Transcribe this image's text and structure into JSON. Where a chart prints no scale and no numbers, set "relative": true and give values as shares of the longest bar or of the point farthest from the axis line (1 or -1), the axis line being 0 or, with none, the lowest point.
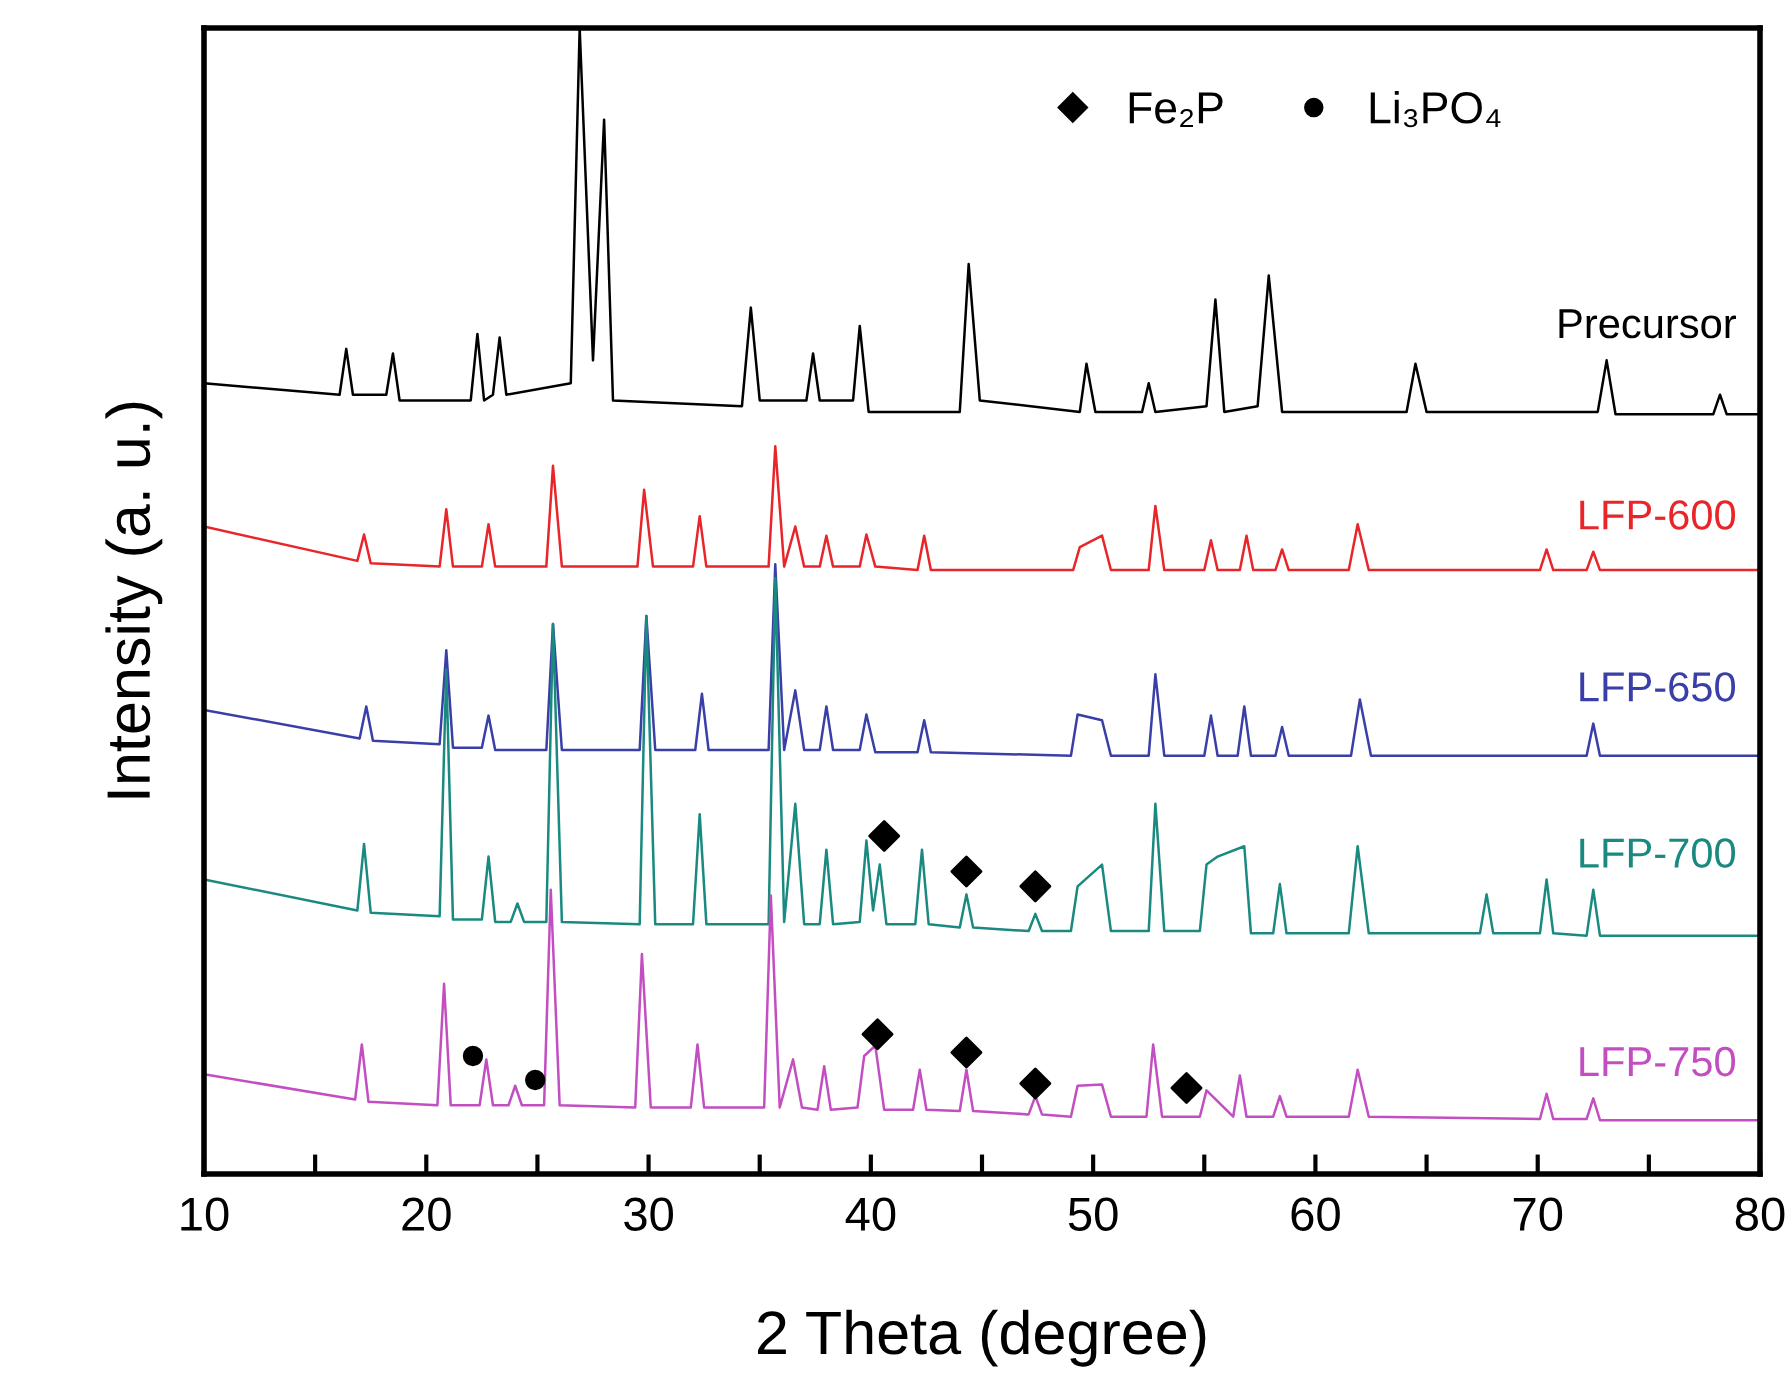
{
  "chart_data": {
    "type": "line",
    "relative": true,
    "xlabel": "2 Theta (degree)",
    "ylabel": "Intensity (a. u.)",
    "xlim": [
      10,
      80
    ],
    "xticks": [
      10,
      {
        "value": 15,
        "label": null
      },
      20,
      {
        "value": 25,
        "label": null
      },
      30,
      {
        "value": 35,
        "label": null
      },
      40,
      {
        "value": 45,
        "label": null
      },
      50,
      {
        "value": 55,
        "label": null
      },
      60,
      {
        "value": 65,
        "label": null
      },
      70,
      {
        "value": 75,
        "label": null
      },
      80
    ],
    "grid": false,
    "legend": "top right",
    "marker": "none",
    "line_style": "solid",
    "series": [
      {
        "name": "Precursor",
        "color": "#000000",
        "x": [
          10,
          16.1,
          16.4,
          16.7,
          18.2,
          18.5,
          18.8,
          22.0,
          22.3,
          22.6,
          23.0,
          23.3,
          23.6,
          26.5,
          26.9,
          27.5,
          28.0,
          28.4,
          34.2,
          34.6,
          35.0,
          37.1,
          37.4,
          37.7,
          39.2,
          39.5,
          39.9,
          44.0,
          44.4,
          44.9,
          49.4,
          49.7,
          50.1,
          52.2,
          52.5,
          52.8,
          55.1,
          55.5,
          55.9,
          57.4,
          57.9,
          58.5,
          64.1,
          64.5,
          65.0,
          72.7,
          73.1,
          73.5,
          77.9,
          78.2,
          78.5,
          80
        ],
        "values": [
          0.69,
          0.68,
          0.72,
          0.68,
          0.68,
          0.716,
          0.675,
          0.675,
          0.733,
          0.675,
          0.68,
          0.73,
          0.68,
          0.69,
          1.0,
          0.71,
          0.92,
          0.675,
          0.67,
          0.756,
          0.675,
          0.675,
          0.716,
          0.675,
          0.675,
          0.74,
          0.665,
          0.665,
          0.794,
          0.675,
          0.665,
          0.707,
          0.665,
          0.665,
          0.69,
          0.665,
          0.67,
          0.763,
          0.665,
          0.67,
          0.784,
          0.665,
          0.665,
          0.707,
          0.665,
          0.665,
          0.71,
          0.663,
          0.663,
          0.68,
          0.663,
          0.663
        ]
      },
      {
        "name": "LFP-600",
        "color": "#e8262a",
        "x": [
          10,
          16.9,
          17.2,
          17.5,
          20.6,
          20.9,
          21.2,
          22.5,
          22.8,
          23.1,
          25.4,
          25.7,
          26.1,
          29.5,
          29.8,
          30.2,
          32.0,
          32.3,
          32.6,
          35.4,
          35.7,
          36.1,
          36.6,
          37.0,
          37.7,
          38.0,
          38.3,
          39.5,
          39.8,
          40.2,
          42.1,
          42.4,
          42.7,
          49.1,
          49.4,
          50.4,
          50.8,
          52.5,
          52.8,
          53.2,
          55.0,
          55.3,
          55.6,
          56.6,
          56.9,
          57.2,
          58.2,
          58.5,
          58.8,
          61.5,
          61.9,
          62.4,
          70.1,
          70.4,
          70.7,
          72.2,
          72.5,
          72.8,
          80
        ],
        "values": [
          0.565,
          0.535,
          0.558,
          0.533,
          0.53,
          0.58,
          0.53,
          0.53,
          0.567,
          0.53,
          0.53,
          0.618,
          0.53,
          0.53,
          0.597,
          0.53,
          0.53,
          0.574,
          0.53,
          0.53,
          0.635,
          0.53,
          0.565,
          0.53,
          0.53,
          0.557,
          0.53,
          0.53,
          0.558,
          0.53,
          0.527,
          0.557,
          0.527,
          0.527,
          0.547,
          0.557,
          0.527,
          0.527,
          0.583,
          0.527,
          0.527,
          0.553,
          0.527,
          0.527,
          0.557,
          0.527,
          0.527,
          0.545,
          0.527,
          0.527,
          0.567,
          0.527,
          0.527,
          0.545,
          0.527,
          0.527,
          0.543,
          0.527,
          0.527
        ]
      },
      {
        "name": "LFP-650",
        "color": "#3a3fa8",
        "x": [
          10,
          17.0,
          17.3,
          17.6,
          20.6,
          20.9,
          21.2,
          22.5,
          22.8,
          23.1,
          25.4,
          25.7,
          26.1,
          29.6,
          29.9,
          30.3,
          32.1,
          32.4,
          32.7,
          35.4,
          35.7,
          36.1,
          36.6,
          37.0,
          37.7,
          38.0,
          38.3,
          39.5,
          39.8,
          40.2,
          42.1,
          42.4,
          42.7,
          49.0,
          49.3,
          50.4,
          50.8,
          52.5,
          52.8,
          53.2,
          55.0,
          55.3,
          55.6,
          56.5,
          56.8,
          57.1,
          58.2,
          58.5,
          58.8,
          61.6,
          62.0,
          62.5,
          72.2,
          72.5,
          72.8,
          80
        ],
        "values": [
          0.405,
          0.38,
          0.408,
          0.378,
          0.375,
          0.457,
          0.372,
          0.372,
          0.4,
          0.37,
          0.37,
          0.48,
          0.37,
          0.37,
          0.487,
          0.37,
          0.37,
          0.419,
          0.37,
          0.37,
          0.532,
          0.37,
          0.422,
          0.37,
          0.37,
          0.408,
          0.37,
          0.37,
          0.401,
          0.368,
          0.368,
          0.396,
          0.368,
          0.365,
          0.401,
          0.396,
          0.365,
          0.365,
          0.436,
          0.365,
          0.365,
          0.4,
          0.365,
          0.365,
          0.408,
          0.365,
          0.365,
          0.39,
          0.365,
          0.365,
          0.414,
          0.365,
          0.365,
          0.393,
          0.365,
          0.365
        ]
      },
      {
        "name": "LFP-700",
        "color": "#1a8a80",
        "x": [
          10,
          16.9,
          17.2,
          17.5,
          20.6,
          20.9,
          21.2,
          22.5,
          22.8,
          23.1,
          23.8,
          24.1,
          24.4,
          25.4,
          25.7,
          26.1,
          29.6,
          29.9,
          30.3,
          32.0,
          32.3,
          32.6,
          35.4,
          35.7,
          36.1,
          36.6,
          37.0,
          37.7,
          38.0,
          38.3,
          39.5,
          39.8,
          40.1,
          40.4,
          40.7,
          42.0,
          42.3,
          42.6,
          44.0,
          44.3,
          44.6,
          47.1,
          47.4,
          47.7,
          49.0,
          49.3,
          50.4,
          50.8,
          52.5,
          52.8,
          53.2,
          54.8,
          55.1,
          55.6,
          56.8,
          57.1,
          58.1,
          58.4,
          58.7,
          61.5,
          61.9,
          62.4,
          67.4,
          67.7,
          68.0,
          70.1,
          70.4,
          70.7,
          72.2,
          72.5,
          72.8,
          80
        ],
        "values": [
          0.257,
          0.23,
          0.288,
          0.228,
          0.225,
          0.44,
          0.222,
          0.222,
          0.277,
          0.22,
          0.22,
          0.236,
          0.22,
          0.22,
          0.48,
          0.22,
          0.218,
          0.487,
          0.218,
          0.218,
          0.314,
          0.218,
          0.218,
          0.52,
          0.22,
          0.323,
          0.218,
          0.218,
          0.283,
          0.218,
          0.22,
          0.291,
          0.23,
          0.27,
          0.218,
          0.218,
          0.283,
          0.218,
          0.215,
          0.244,
          0.215,
          0.212,
          0.227,
          0.212,
          0.212,
          0.251,
          0.27,
          0.212,
          0.212,
          0.323,
          0.212,
          0.212,
          0.27,
          0.277,
          0.286,
          0.21,
          0.21,
          0.253,
          0.21,
          0.21,
          0.286,
          0.21,
          0.21,
          0.244,
          0.21,
          0.21,
          0.257,
          0.21,
          0.208,
          0.248,
          0.208,
          0.208
        ]
      },
      {
        "name": "LFP-750",
        "color": "#c24ec2",
        "x": [
          10,
          16.8,
          17.1,
          17.4,
          20.5,
          20.8,
          21.1,
          22.4,
          22.7,
          23.0,
          23.7,
          24.0,
          24.3,
          25.3,
          25.6,
          26.0,
          29.4,
          29.7,
          30.1,
          31.9,
          32.2,
          32.5,
          35.2,
          35.5,
          35.9,
          36.5,
          36.9,
          37.6,
          37.9,
          38.2,
          39.4,
          39.7,
          40.2,
          40.6,
          41.9,
          42.2,
          42.5,
          44.0,
          44.3,
          44.6,
          47.1,
          47.4,
          47.7,
          49.0,
          49.3,
          50.4,
          50.8,
          52.4,
          52.7,
          53.1,
          54.8,
          55.1,
          56.3,
          56.6,
          56.9,
          58.1,
          58.4,
          58.7,
          61.5,
          61.9,
          62.4,
          70.1,
          70.4,
          70.7,
          72.2,
          72.5,
          72.8,
          80
        ],
        "values": [
          0.087,
          0.065,
          0.113,
          0.063,
          0.06,
          0.166,
          0.06,
          0.06,
          0.1,
          0.06,
          0.06,
          0.077,
          0.06,
          0.06,
          0.248,
          0.06,
          0.058,
          0.192,
          0.058,
          0.058,
          0.113,
          0.058,
          0.058,
          0.243,
          0.058,
          0.1,
          0.058,
          0.056,
          0.094,
          0.056,
          0.058,
          0.103,
          0.112,
          0.056,
          0.056,
          0.091,
          0.056,
          0.055,
          0.091,
          0.055,
          0.052,
          0.068,
          0.052,
          0.05,
          0.077,
          0.078,
          0.05,
          0.05,
          0.113,
          0.05,
          0.05,
          0.073,
          0.05,
          0.086,
          0.05,
          0.05,
          0.068,
          0.05,
          0.05,
          0.091,
          0.05,
          0.048,
          0.07,
          0.048,
          0.048,
          0.066,
          0.047,
          0.047
        ]
      },
      {
        "name": "Fe₂P",
        "type": "scatter",
        "marker": "diamond",
        "color": "#000000",
        "x": [
          40.6,
          44.3,
          47.4,
          40.3,
          44.3,
          47.4,
          54.2
        ],
        "values": [
          0.295,
          0.264,
          0.251,
          0.122,
          0.106,
          0.079,
          0.075
        ]
      },
      {
        "name": "Li₃PO₄",
        "type": "scatter",
        "marker": "circle",
        "color": "#000000",
        "x": [
          22.1,
          24.9
        ],
        "values": [
          0.103,
          0.082
        ]
      }
    ]
  }
}
